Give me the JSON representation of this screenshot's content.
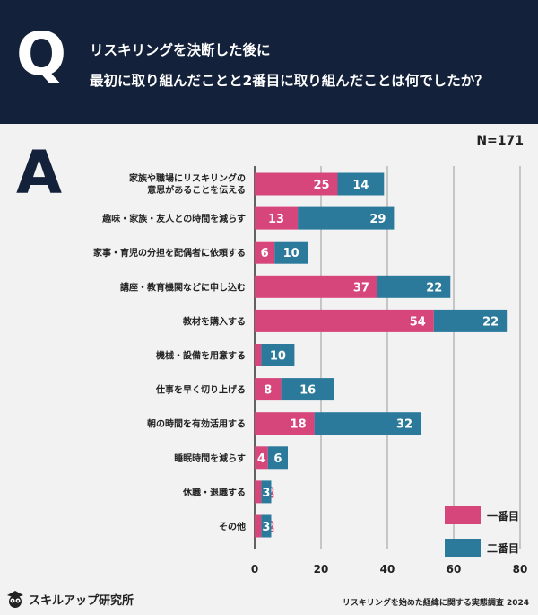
{
  "question": {
    "letter": "Q",
    "line1": "リスキリングを決断した後に",
    "line2": "最初に取り組んだことと2番目に取り組んだことは何でしたか？"
  },
  "answer_letter": "A",
  "n_label": "N=171",
  "chart_data": {
    "type": "bar",
    "orientation": "horizontal",
    "stacked": true,
    "categories": [
      [
        "家族や職場にリスキリングの",
        "意思があることを伝える"
      ],
      [
        "趣味・家族・友人との時間を減らす"
      ],
      [
        "家事・育児の分担を配偶者に依頼する"
      ],
      [
        "講座・教育機関などに申し込む"
      ],
      [
        "教材を購入する"
      ],
      [
        "機械・設備を用意する"
      ],
      [
        "仕事を早く切り上げる"
      ],
      [
        "朝の時間を有効活用する"
      ],
      [
        "睡眠時間を減らす"
      ],
      [
        "休職・退職する"
      ],
      [
        "その他"
      ]
    ],
    "series": [
      {
        "name": "一番目",
        "color": "#d6467a",
        "values": [
          25,
          13,
          6,
          37,
          54,
          2,
          8,
          18,
          4,
          2,
          2
        ]
      },
      {
        "name": "二番目",
        "color": "#2b7a9b",
        "values": [
          14,
          29,
          10,
          22,
          22,
          10,
          16,
          32,
          6,
          3,
          3
        ]
      }
    ],
    "xlim": [
      0,
      80
    ],
    "xticks": [
      0,
      20,
      40,
      60,
      80
    ],
    "grid": true,
    "legend": "bottom-right"
  },
  "brand": {
    "name": "スキルアップ研究所",
    "icon": "owl-icon"
  },
  "source": "リスキリングを始めた経緯に関する実態調査 2024"
}
